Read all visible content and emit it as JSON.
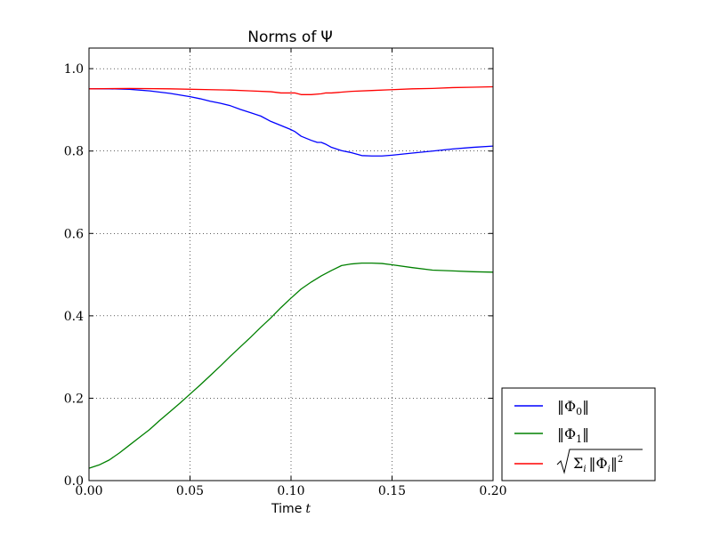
{
  "chart_data": {
    "type": "line",
    "title": "Norms of Ψ",
    "title_prefix": "Norms of",
    "title_symbol": "Ψ",
    "xlabel": "Time t",
    "xlabel_prefix": "Time",
    "xlabel_symbol": "t",
    "ylabel": "",
    "xlim": [
      0.0,
      0.2
    ],
    "ylim": [
      0.0,
      1.05
    ],
    "xticks": [
      0.0,
      0.05,
      0.1,
      0.15,
      0.2
    ],
    "xtick_labels": [
      "0.00",
      "0.05",
      "0.10",
      "0.15",
      "0.20"
    ],
    "yticks": [
      0.0,
      0.2,
      0.4,
      0.6,
      0.8,
      1.0
    ],
    "ytick_labels": [
      "0.0",
      "0.2",
      "0.4",
      "0.6",
      "0.8",
      "1.0"
    ],
    "grid": true,
    "legend_position": "outside-bottom-right",
    "series": [
      {
        "name": "||Φ0||",
        "color": "#0000ff",
        "x": [
          0.0,
          0.01,
          0.02,
          0.03,
          0.04,
          0.05,
          0.055,
          0.06,
          0.065,
          0.07,
          0.075,
          0.08,
          0.085,
          0.09,
          0.095,
          0.1,
          0.102,
          0.105,
          0.11,
          0.113,
          0.115,
          0.117,
          0.12,
          0.125,
          0.13,
          0.135,
          0.14,
          0.145,
          0.15,
          0.16,
          0.17,
          0.18,
          0.19,
          0.2
        ],
        "values": [
          0.951,
          0.951,
          0.95,
          0.946,
          0.94,
          0.932,
          0.927,
          0.921,
          0.916,
          0.91,
          0.901,
          0.893,
          0.885,
          0.872,
          0.862,
          0.852,
          0.847,
          0.836,
          0.826,
          0.821,
          0.821,
          0.817,
          0.809,
          0.801,
          0.796,
          0.789,
          0.788,
          0.788,
          0.79,
          0.795,
          0.8,
          0.805,
          0.809,
          0.812
        ]
      },
      {
        "name": "||Φ1||",
        "color": "#008000",
        "x": [
          0.0,
          0.005,
          0.01,
          0.015,
          0.02,
          0.025,
          0.03,
          0.035,
          0.04,
          0.045,
          0.05,
          0.055,
          0.06,
          0.065,
          0.07,
          0.075,
          0.08,
          0.085,
          0.09,
          0.095,
          0.1,
          0.105,
          0.11,
          0.115,
          0.12,
          0.125,
          0.13,
          0.135,
          0.14,
          0.145,
          0.15,
          0.16,
          0.17,
          0.18,
          0.19,
          0.2
        ],
        "values": [
          0.03,
          0.038,
          0.05,
          0.067,
          0.086,
          0.105,
          0.124,
          0.146,
          0.167,
          0.188,
          0.21,
          0.232,
          0.255,
          0.278,
          0.302,
          0.325,
          0.348,
          0.372,
          0.395,
          0.42,
          0.443,
          0.465,
          0.482,
          0.497,
          0.51,
          0.522,
          0.526,
          0.528,
          0.528,
          0.527,
          0.524,
          0.517,
          0.511,
          0.509,
          0.507,
          0.506
        ]
      },
      {
        "name": "sqrt(Σi ||Φi||²)",
        "color": "#ff0000",
        "x": [
          0.0,
          0.02,
          0.04,
          0.06,
          0.07,
          0.08,
          0.09,
          0.095,
          0.1,
          0.102,
          0.105,
          0.11,
          0.115,
          0.117,
          0.12,
          0.13,
          0.14,
          0.15,
          0.16,
          0.17,
          0.18,
          0.19,
          0.2
        ],
        "values": [
          0.951,
          0.952,
          0.951,
          0.949,
          0.948,
          0.946,
          0.944,
          0.941,
          0.941,
          0.941,
          0.937,
          0.937,
          0.939,
          0.941,
          0.941,
          0.945,
          0.947,
          0.949,
          0.951,
          0.952,
          0.954,
          0.955,
          0.956
        ]
      }
    ]
  }
}
